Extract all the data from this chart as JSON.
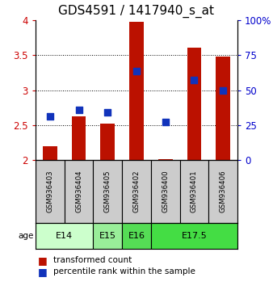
{
  "title": "GDS4591 / 1417940_s_at",
  "samples": [
    "GSM936403",
    "GSM936404",
    "GSM936405",
    "GSM936402",
    "GSM936400",
    "GSM936401",
    "GSM936406"
  ],
  "red_values": [
    2.2,
    2.62,
    2.52,
    3.97,
    2.02,
    3.6,
    3.48
  ],
  "blue_values": [
    2.62,
    2.72,
    2.68,
    3.27,
    2.55,
    3.15,
    3.0
  ],
  "ylim": [
    2.0,
    4.0
  ],
  "yticks_left": [
    2.0,
    2.5,
    3.0,
    3.5,
    4.0
  ],
  "yticks_right": [
    0,
    25,
    50,
    75,
    100
  ],
  "ytick_labels_right": [
    "0",
    "25",
    "50",
    "75",
    "100%"
  ],
  "age_groups": [
    {
      "label": "E14",
      "spans": [
        0,
        2
      ],
      "color": "#ccffcc"
    },
    {
      "label": "E15",
      "spans": [
        2,
        3
      ],
      "color": "#99ee99"
    },
    {
      "label": "E16",
      "spans": [
        3,
        4
      ],
      "color": "#55dd55"
    },
    {
      "label": "E17.5",
      "spans": [
        4,
        7
      ],
      "color": "#44dd44"
    }
  ],
  "bar_color": "#bb1100",
  "dot_color": "#1133bb",
  "bar_width": 0.5,
  "dot_size": 40,
  "background_color": "#ffffff",
  "sample_box_color": "#cccccc",
  "legend_red_label": "transformed count",
  "legend_blue_label": "percentile rank within the sample",
  "ylabel_left_color": "#cc0000",
  "ylabel_right_color": "#0000cc",
  "title_fontsize": 11,
  "tick_fontsize": 8.5,
  "legend_fontsize": 7.5
}
